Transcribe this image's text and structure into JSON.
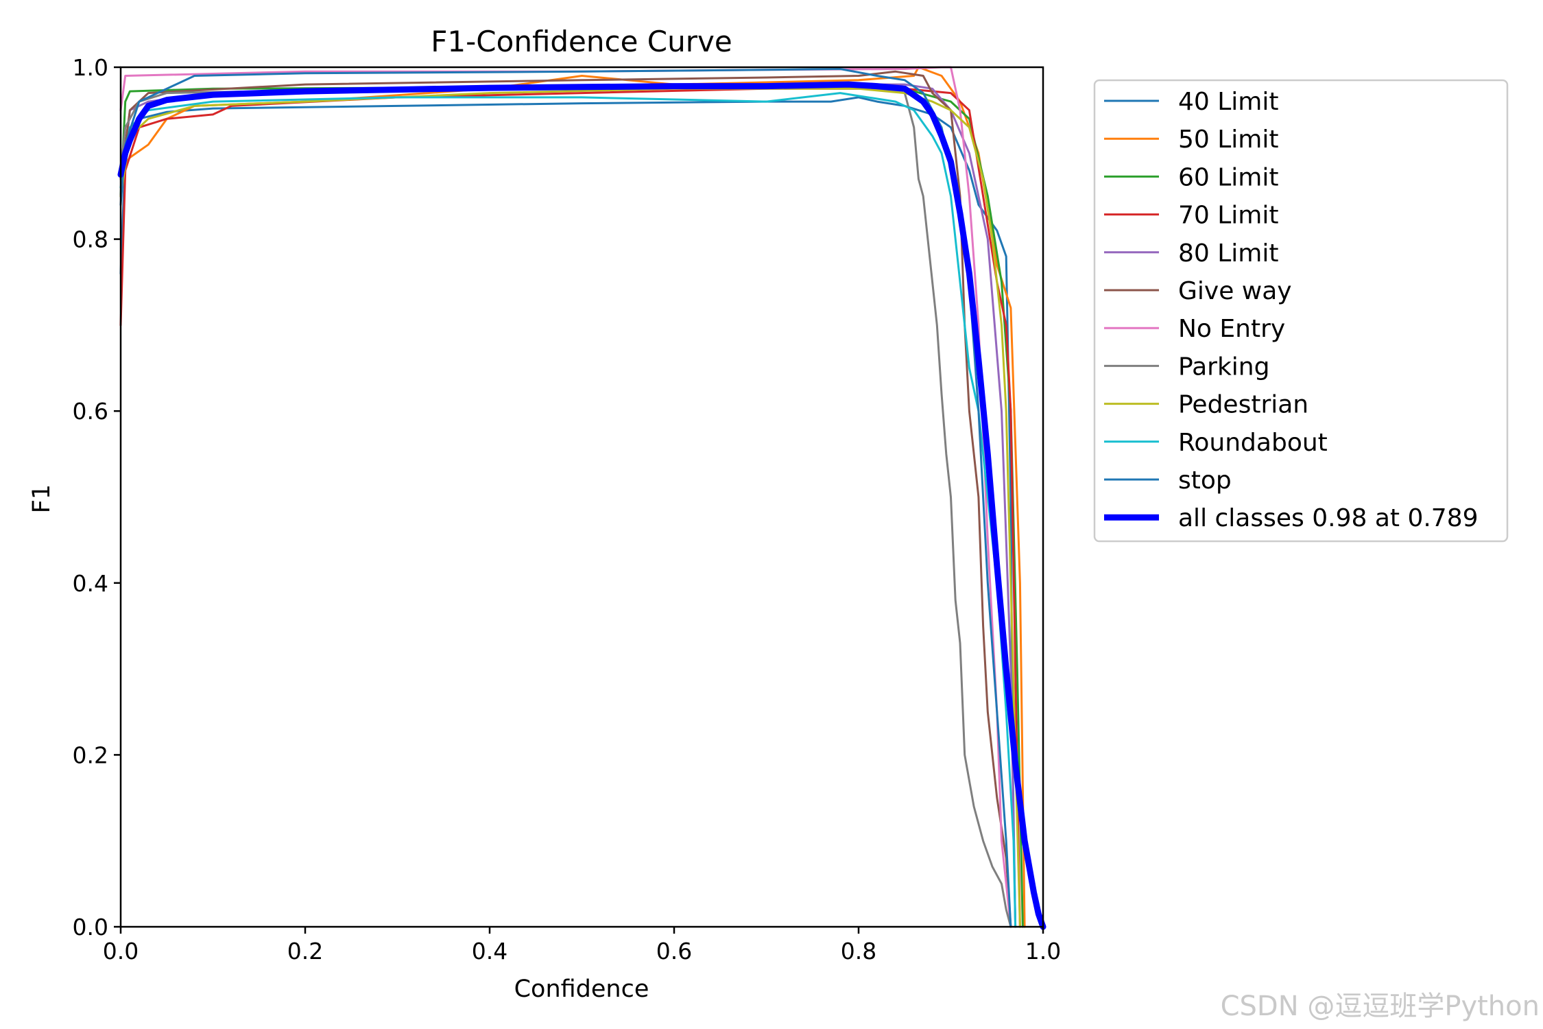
{
  "chart_data": {
    "type": "line",
    "title": "F1-Confidence Curve",
    "xlabel": "Confidence",
    "ylabel": "F1",
    "xlim": [
      0,
      1
    ],
    "ylim": [
      0,
      1
    ],
    "xticks": [
      "0.0",
      "0.2",
      "0.4",
      "0.6",
      "0.8",
      "1.0"
    ],
    "yticks": [
      "0.0",
      "0.2",
      "0.4",
      "0.6",
      "0.8",
      "1.0"
    ],
    "grid": false,
    "legend_position": "outside-right",
    "series": [
      {
        "name": "40 Limit",
        "color": "#1f77b4",
        "width": 3,
        "points": [
          [
            0,
            0.76
          ],
          [
            0.005,
            0.9
          ],
          [
            0.02,
            0.94
          ],
          [
            0.05,
            0.948
          ],
          [
            0.1,
            0.952
          ],
          [
            0.3,
            0.955
          ],
          [
            0.5,
            0.958
          ],
          [
            0.7,
            0.96
          ],
          [
            0.77,
            0.96
          ],
          [
            0.8,
            0.965
          ],
          [
            0.82,
            0.96
          ],
          [
            0.85,
            0.955
          ],
          [
            0.88,
            0.945
          ],
          [
            0.9,
            0.93
          ],
          [
            0.92,
            0.88
          ],
          [
            0.93,
            0.84
          ],
          [
            0.95,
            0.81
          ],
          [
            0.96,
            0.78
          ],
          [
            0.965,
            0.5
          ],
          [
            0.967,
            0.2
          ],
          [
            0.97,
            0.0
          ]
        ]
      },
      {
        "name": "50 Limit",
        "color": "#ff7f0e",
        "width": 3,
        "points": [
          [
            0,
            0.88
          ],
          [
            0.01,
            0.895
          ],
          [
            0.03,
            0.91
          ],
          [
            0.05,
            0.94
          ],
          [
            0.08,
            0.955
          ],
          [
            0.2,
            0.96
          ],
          [
            0.4,
            0.975
          ],
          [
            0.5,
            0.99
          ],
          [
            0.6,
            0.98
          ],
          [
            0.8,
            0.985
          ],
          [
            0.86,
            0.99
          ],
          [
            0.865,
            1.0
          ],
          [
            0.89,
            0.99
          ],
          [
            0.91,
            0.96
          ],
          [
            0.93,
            0.9
          ],
          [
            0.95,
            0.77
          ],
          [
            0.965,
            0.72
          ],
          [
            0.975,
            0.4
          ],
          [
            0.98,
            0.0
          ]
        ]
      },
      {
        "name": "60 Limit",
        "color": "#2ca02c",
        "width": 3,
        "points": [
          [
            0,
            0.85
          ],
          [
            0.005,
            0.96
          ],
          [
            0.01,
            0.972
          ],
          [
            0.1,
            0.975
          ],
          [
            0.3,
            0.976
          ],
          [
            0.5,
            0.978
          ],
          [
            0.7,
            0.978
          ],
          [
            0.85,
            0.975
          ],
          [
            0.9,
            0.96
          ],
          [
            0.92,
            0.94
          ],
          [
            0.94,
            0.85
          ],
          [
            0.955,
            0.75
          ],
          [
            0.965,
            0.6
          ],
          [
            0.972,
            0.3
          ],
          [
            0.978,
            0.0
          ]
        ]
      },
      {
        "name": "70 Limit",
        "color": "#d62728",
        "width": 3,
        "points": [
          [
            0,
            0.7
          ],
          [
            0.005,
            0.88
          ],
          [
            0.02,
            0.93
          ],
          [
            0.05,
            0.94
          ],
          [
            0.1,
            0.945
          ],
          [
            0.12,
            0.955
          ],
          [
            0.3,
            0.965
          ],
          [
            0.5,
            0.97
          ],
          [
            0.7,
            0.975
          ],
          [
            0.85,
            0.975
          ],
          [
            0.9,
            0.97
          ],
          [
            0.92,
            0.95
          ],
          [
            0.935,
            0.85
          ],
          [
            0.95,
            0.75
          ],
          [
            0.96,
            0.7
          ],
          [
            0.965,
            0.6
          ],
          [
            0.97,
            0.3
          ],
          [
            0.975,
            0.0
          ]
        ]
      },
      {
        "name": "80 Limit",
        "color": "#9467bd",
        "width": 3,
        "points": [
          [
            0,
            0.85
          ],
          [
            0.01,
            0.95
          ],
          [
            0.03,
            0.96
          ],
          [
            0.1,
            0.97
          ],
          [
            0.3,
            0.975
          ],
          [
            0.5,
            0.978
          ],
          [
            0.7,
            0.98
          ],
          [
            0.85,
            0.98
          ],
          [
            0.88,
            0.975
          ],
          [
            0.9,
            0.95
          ],
          [
            0.92,
            0.9
          ],
          [
            0.94,
            0.8
          ],
          [
            0.955,
            0.6
          ],
          [
            0.965,
            0.3
          ],
          [
            0.97,
            0.0
          ]
        ]
      },
      {
        "name": "Give way",
        "color": "#8c564b",
        "width": 3,
        "points": [
          [
            0,
            0.87
          ],
          [
            0.01,
            0.95
          ],
          [
            0.03,
            0.97
          ],
          [
            0.2,
            0.98
          ],
          [
            0.5,
            0.985
          ],
          [
            0.7,
            0.988
          ],
          [
            0.8,
            0.99
          ],
          [
            0.84,
            0.995
          ],
          [
            0.87,
            0.99
          ],
          [
            0.88,
            0.97
          ],
          [
            0.9,
            0.95
          ],
          [
            0.91,
            0.85
          ],
          [
            0.915,
            0.7
          ],
          [
            0.92,
            0.6
          ],
          [
            0.93,
            0.5
          ],
          [
            0.935,
            0.35
          ],
          [
            0.94,
            0.25
          ],
          [
            0.95,
            0.15
          ],
          [
            0.96,
            0.08
          ],
          [
            0.965,
            0.0
          ]
        ]
      },
      {
        "name": "No Entry",
        "color": "#e377c2",
        "width": 3,
        "points": [
          [
            0,
            0.95
          ],
          [
            0.005,
            0.99
          ],
          [
            0.2,
            0.995
          ],
          [
            0.5,
            0.995
          ],
          [
            0.7,
            0.997
          ],
          [
            0.85,
            0.998
          ],
          [
            0.89,
            1.0
          ],
          [
            0.9,
            1.0
          ],
          [
            0.91,
            0.95
          ],
          [
            0.92,
            0.85
          ],
          [
            0.93,
            0.7
          ],
          [
            0.94,
            0.45
          ],
          [
            0.95,
            0.25
          ],
          [
            0.955,
            0.1
          ],
          [
            0.96,
            0.05
          ],
          [
            0.965,
            0.0
          ]
        ]
      },
      {
        "name": "Parking",
        "color": "#7f7f7f",
        "width": 3,
        "points": [
          [
            0,
            0.88
          ],
          [
            0.005,
            0.93
          ],
          [
            0.02,
            0.96
          ],
          [
            0.05,
            0.97
          ],
          [
            0.3,
            0.975
          ],
          [
            0.6,
            0.977
          ],
          [
            0.8,
            0.978
          ],
          [
            0.85,
            0.97
          ],
          [
            0.86,
            0.93
          ],
          [
            0.865,
            0.87
          ],
          [
            0.87,
            0.85
          ],
          [
            0.875,
            0.8
          ],
          [
            0.88,
            0.75
          ],
          [
            0.885,
            0.7
          ],
          [
            0.89,
            0.62
          ],
          [
            0.895,
            0.55
          ],
          [
            0.9,
            0.5
          ],
          [
            0.905,
            0.38
          ],
          [
            0.91,
            0.33
          ],
          [
            0.915,
            0.2
          ],
          [
            0.925,
            0.14
          ],
          [
            0.935,
            0.1
          ],
          [
            0.945,
            0.07
          ],
          [
            0.955,
            0.05
          ],
          [
            0.96,
            0.02
          ],
          [
            0.965,
            0.0
          ]
        ]
      },
      {
        "name": "Pedestrian",
        "color": "#bcbd22",
        "width": 3,
        "points": [
          [
            0,
            0.85
          ],
          [
            0.01,
            0.92
          ],
          [
            0.03,
            0.94
          ],
          [
            0.08,
            0.955
          ],
          [
            0.2,
            0.96
          ],
          [
            0.4,
            0.97
          ],
          [
            0.6,
            0.975
          ],
          [
            0.8,
            0.975
          ],
          [
            0.85,
            0.97
          ],
          [
            0.88,
            0.96
          ],
          [
            0.9,
            0.95
          ],
          [
            0.92,
            0.93
          ],
          [
            0.935,
            0.87
          ],
          [
            0.945,
            0.8
          ],
          [
            0.955,
            0.7
          ],
          [
            0.96,
            0.6
          ],
          [
            0.965,
            0.4
          ],
          [
            0.97,
            0.2
          ],
          [
            0.975,
            0.0
          ]
        ]
      },
      {
        "name": "Roundabout",
        "color": "#17becf",
        "width": 3,
        "points": [
          [
            0,
            0.86
          ],
          [
            0.01,
            0.93
          ],
          [
            0.03,
            0.95
          ],
          [
            0.1,
            0.96
          ],
          [
            0.3,
            0.965
          ],
          [
            0.5,
            0.965
          ],
          [
            0.7,
            0.96
          ],
          [
            0.78,
            0.97
          ],
          [
            0.84,
            0.96
          ],
          [
            0.86,
            0.95
          ],
          [
            0.88,
            0.92
          ],
          [
            0.89,
            0.9
          ],
          [
            0.9,
            0.85
          ],
          [
            0.91,
            0.75
          ],
          [
            0.92,
            0.65
          ],
          [
            0.93,
            0.6
          ],
          [
            0.94,
            0.5
          ],
          [
            0.95,
            0.4
          ],
          [
            0.96,
            0.25
          ],
          [
            0.968,
            0.1
          ],
          [
            0.97,
            0.0
          ]
        ]
      },
      {
        "name": "stop",
        "color": "#1f77b4",
        "width": 3,
        "points": [
          [
            0,
            0.84
          ],
          [
            0.005,
            0.91
          ],
          [
            0.02,
            0.96
          ],
          [
            0.08,
            0.99
          ],
          [
            0.2,
            0.993
          ],
          [
            0.5,
            0.995
          ],
          [
            0.7,
            0.997
          ],
          [
            0.78,
            0.998
          ],
          [
            0.82,
            0.99
          ],
          [
            0.85,
            0.985
          ],
          [
            0.87,
            0.97
          ],
          [
            0.89,
            0.93
          ],
          [
            0.9,
            0.88
          ],
          [
            0.91,
            0.82
          ],
          [
            0.92,
            0.75
          ],
          [
            0.93,
            0.6
          ],
          [
            0.94,
            0.4
          ],
          [
            0.95,
            0.25
          ],
          [
            0.96,
            0.1
          ],
          [
            0.965,
            0.0
          ]
        ]
      },
      {
        "name": "all classes 0.98 at 0.789",
        "color": "#0000ff",
        "width": 9,
        "points": [
          [
            0,
            0.875
          ],
          [
            0.005,
            0.9
          ],
          [
            0.01,
            0.915
          ],
          [
            0.02,
            0.94
          ],
          [
            0.03,
            0.955
          ],
          [
            0.05,
            0.962
          ],
          [
            0.1,
            0.968
          ],
          [
            0.2,
            0.972
          ],
          [
            0.3,
            0.974
          ],
          [
            0.4,
            0.976
          ],
          [
            0.5,
            0.977
          ],
          [
            0.6,
            0.978
          ],
          [
            0.7,
            0.978
          ],
          [
            0.789,
            0.98
          ],
          [
            0.82,
            0.978
          ],
          [
            0.85,
            0.975
          ],
          [
            0.87,
            0.96
          ],
          [
            0.88,
            0.945
          ],
          [
            0.89,
            0.92
          ],
          [
            0.9,
            0.89
          ],
          [
            0.91,
            0.83
          ],
          [
            0.92,
            0.76
          ],
          [
            0.93,
            0.66
          ],
          [
            0.94,
            0.55
          ],
          [
            0.95,
            0.42
          ],
          [
            0.96,
            0.3
          ],
          [
            0.97,
            0.19
          ],
          [
            0.98,
            0.1
          ],
          [
            0.99,
            0.04
          ],
          [
            0.995,
            0.015
          ],
          [
            1.0,
            0.0
          ]
        ]
      }
    ]
  },
  "watermark": "CSDN @逗逗班学Python"
}
